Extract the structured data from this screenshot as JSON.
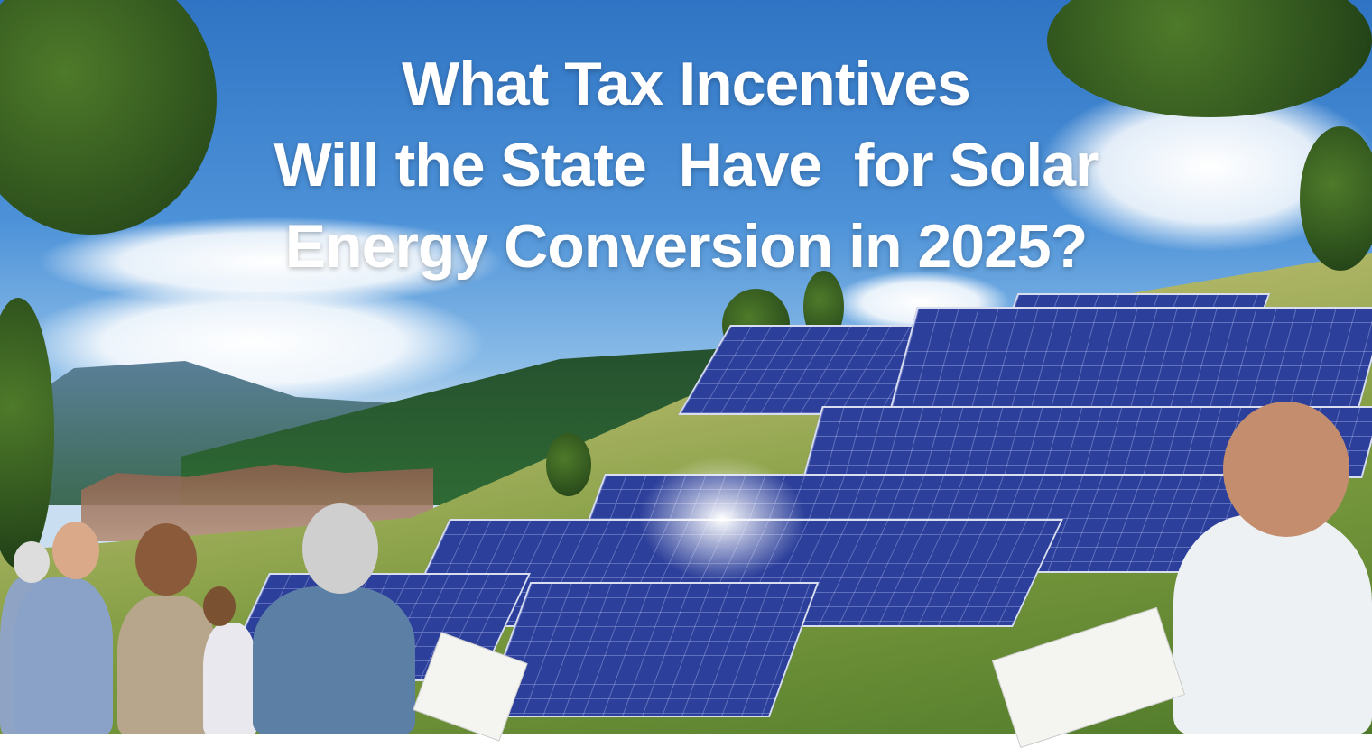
{
  "headline": {
    "lines": [
      "What Tax Incentives",
      "Will the State  Have  for Solar",
      "Energy Conversion in 2025?"
    ]
  },
  "scene": {
    "description_elements": [
      "sky",
      "clouds",
      "mountains",
      "village",
      "hillside",
      "solar-panels",
      "trees",
      "people-with-flyers"
    ],
    "colors": {
      "sky": "#2f74c4",
      "panel": "#2c3f9a",
      "grass": "#9fb64e",
      "title": "#ffffff"
    }
  }
}
